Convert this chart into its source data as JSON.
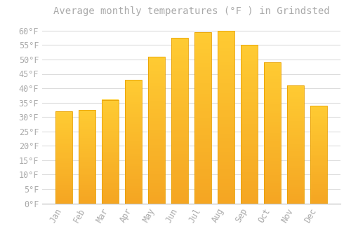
{
  "title": "Average monthly temperatures (°F ) in Grindsted",
  "months": [
    "Jan",
    "Feb",
    "Mar",
    "Apr",
    "May",
    "Jun",
    "Jul",
    "Aug",
    "Sep",
    "Oct",
    "Nov",
    "Dec"
  ],
  "values": [
    32,
    32.5,
    36,
    43,
    51,
    57.5,
    59.5,
    60,
    55,
    49,
    41,
    34
  ],
  "bar_color_top": "#FFBB33",
  "bar_color_bottom": "#F5A623",
  "bar_edge_color": "#E8A000",
  "background_color": "#FFFFFF",
  "grid_color": "#DDDDDD",
  "text_color": "#AAAAAA",
  "ylim": [
    0,
    63
  ],
  "yticks": [
    0,
    5,
    10,
    15,
    20,
    25,
    30,
    35,
    40,
    45,
    50,
    55,
    60
  ],
  "title_fontsize": 10,
  "tick_fontsize": 8.5
}
